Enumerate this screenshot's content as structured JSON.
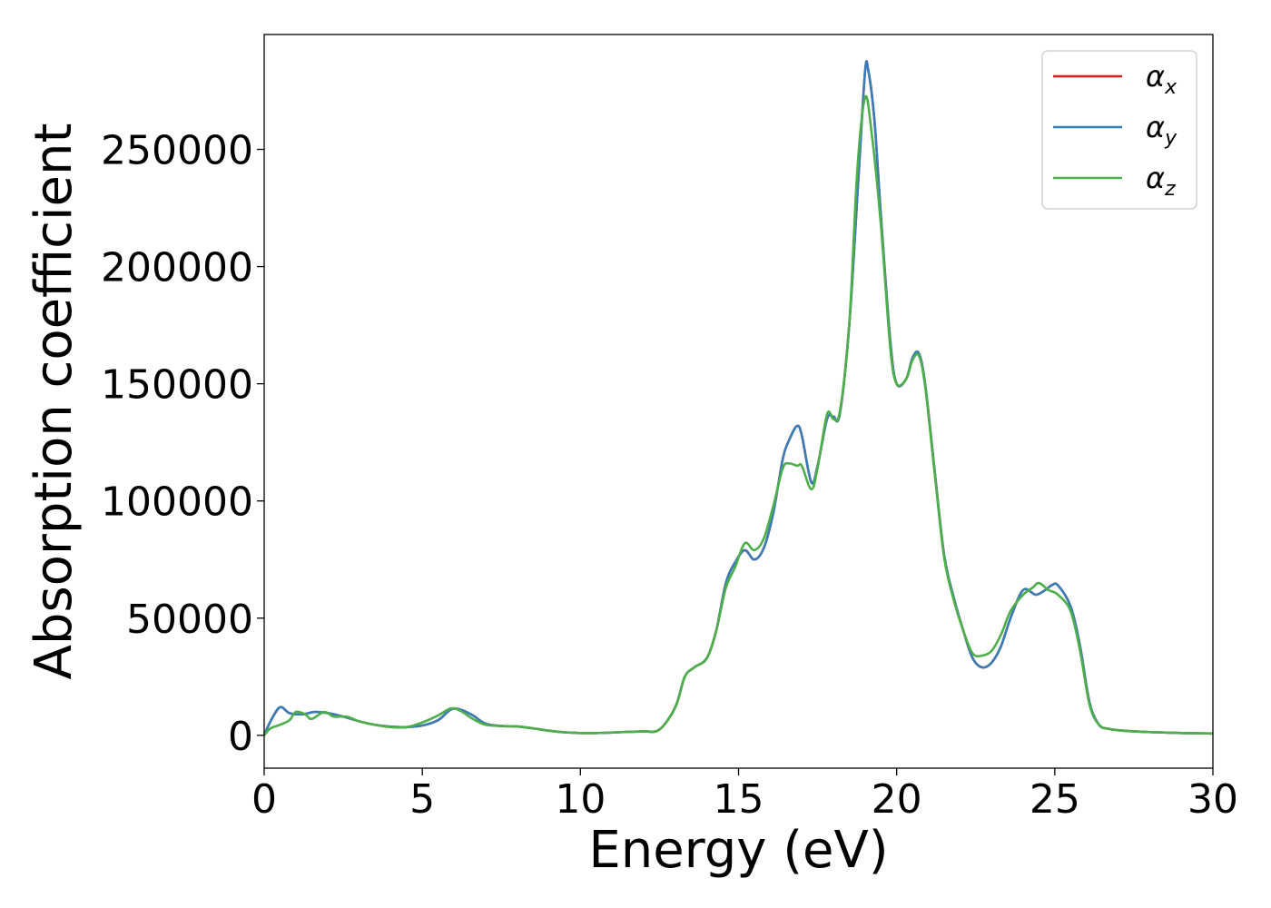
{
  "chart_data": {
    "type": "line",
    "title": "",
    "xlabel": "Energy (eV)",
    "ylabel": "Absorption coefficient",
    "xlim": [
      0,
      30
    ],
    "ylim": [
      -14000,
      299000
    ],
    "xticks": [
      0,
      5,
      10,
      15,
      20,
      25,
      30
    ],
    "yticks": [
      0,
      50000,
      100000,
      150000,
      200000,
      250000
    ],
    "grid": false,
    "legend_position": "top-right",
    "series": [
      {
        "name": "α_x",
        "base": "α",
        "sub": "x",
        "color": "#e41a1c",
        "x": [
          0,
          0.2,
          0.5,
          0.8,
          1.2,
          1.6,
          2.0,
          2.5,
          3.0,
          3.5,
          4.0,
          4.5,
          5.0,
          5.5,
          5.9,
          6.2,
          6.6,
          7.0,
          7.5,
          8.0,
          8.5,
          9.0,
          9.5,
          10.0,
          10.5,
          11.0,
          11.5,
          12.0,
          12.5,
          13.0,
          13.3,
          13.6,
          14.0,
          14.3,
          14.6,
          14.9,
          15.2,
          15.5,
          15.8,
          16.1,
          16.4,
          16.6,
          16.85,
          17.0,
          17.3,
          17.5,
          17.8,
          18.0,
          18.2,
          18.5,
          18.8,
          19.0,
          19.1,
          19.3,
          19.5,
          19.8,
          20.0,
          20.3,
          20.5,
          20.7,
          20.9,
          21.2,
          21.5,
          21.8,
          22.1,
          22.4,
          22.7,
          23.0,
          23.3,
          23.6,
          24.0,
          24.4,
          24.7,
          24.9,
          25.1,
          25.5,
          25.8,
          26.1,
          26.4,
          26.7,
          27.0,
          27.5,
          28.0,
          29.0,
          30.0
        ],
        "y": [
          0,
          6000,
          12000,
          9500,
          9000,
          10000,
          9500,
          8000,
          6000,
          4500,
          3700,
          3500,
          4200,
          6500,
          11000,
          11000,
          8500,
          5000,
          4000,
          3800,
          3000,
          2000,
          1300,
          1000,
          1000,
          1200,
          1500,
          1700,
          2500,
          12000,
          25000,
          29000,
          33000,
          45000,
          65000,
          74000,
          79000,
          75000,
          80000,
          95000,
          118000,
          126000,
          132000,
          128000,
          108000,
          115000,
          135000,
          136000,
          137000,
          175000,
          240000,
          283000,
          284000,
          262000,
          222000,
          168000,
          150000,
          152000,
          161000,
          163000,
          150000,
          113000,
          77000,
          59000,
          45000,
          33000,
          29000,
          31000,
          38000,
          50000,
          62000,
          60000,
          62000,
          64000,
          64000,
          55000,
          38000,
          14000,
          4500,
          2800,
          2200,
          1700,
          1400,
          1000,
          800
        ]
      },
      {
        "name": "α_y",
        "base": "α",
        "sub": "y",
        "color": "#377eb8",
        "x": [
          0,
          0.2,
          0.5,
          0.8,
          1.2,
          1.6,
          2.0,
          2.5,
          3.0,
          3.5,
          4.0,
          4.5,
          5.0,
          5.5,
          5.9,
          6.2,
          6.6,
          7.0,
          7.5,
          8.0,
          8.5,
          9.0,
          9.5,
          10.0,
          10.5,
          11.0,
          11.5,
          12.0,
          12.5,
          13.0,
          13.3,
          13.6,
          14.0,
          14.3,
          14.6,
          14.9,
          15.2,
          15.5,
          15.8,
          16.1,
          16.4,
          16.6,
          16.85,
          17.0,
          17.3,
          17.5,
          17.8,
          18.0,
          18.2,
          18.5,
          18.8,
          19.0,
          19.1,
          19.3,
          19.5,
          19.8,
          20.0,
          20.3,
          20.5,
          20.7,
          20.9,
          21.2,
          21.5,
          21.8,
          22.1,
          22.4,
          22.7,
          23.0,
          23.3,
          23.6,
          24.0,
          24.4,
          24.7,
          24.9,
          25.1,
          25.5,
          25.8,
          26.1,
          26.4,
          26.7,
          27.0,
          27.5,
          28.0,
          29.0,
          30.0
        ],
        "y": [
          0,
          6000,
          12000,
          9500,
          9000,
          10000,
          9500,
          8000,
          6000,
          4500,
          3700,
          3500,
          4200,
          6500,
          11000,
          11000,
          8500,
          5000,
          4000,
          3800,
          3000,
          2000,
          1300,
          1000,
          1000,
          1200,
          1500,
          1700,
          2500,
          12000,
          25000,
          29000,
          33000,
          45000,
          65000,
          74000,
          79000,
          75000,
          80000,
          95000,
          118000,
          126000,
          132000,
          128000,
          108000,
          115000,
          135000,
          136000,
          137000,
          175000,
          240000,
          283000,
          284000,
          262000,
          222000,
          168000,
          150000,
          152000,
          161000,
          163000,
          150000,
          113000,
          77000,
          59000,
          45000,
          33000,
          29000,
          31000,
          38000,
          50000,
          62000,
          60000,
          62000,
          64000,
          64000,
          55000,
          38000,
          14000,
          4500,
          2800,
          2200,
          1700,
          1400,
          1000,
          800
        ]
      },
      {
        "name": "α_z",
        "base": "α",
        "sub": "z",
        "color": "#4daf4a",
        "x": [
          0,
          0.2,
          0.5,
          0.8,
          1.0,
          1.3,
          1.5,
          1.9,
          2.2,
          2.6,
          3.0,
          3.5,
          4.0,
          4.5,
          5.0,
          5.5,
          5.9,
          6.2,
          6.6,
          7.0,
          7.5,
          8.0,
          8.5,
          9.0,
          9.5,
          10.0,
          10.5,
          11.0,
          11.5,
          12.0,
          12.5,
          13.0,
          13.3,
          13.6,
          14.0,
          14.3,
          14.6,
          14.9,
          15.2,
          15.5,
          15.8,
          16.1,
          16.4,
          16.6,
          16.85,
          17.0,
          17.3,
          17.5,
          17.8,
          18.0,
          18.2,
          18.5,
          18.75,
          19.0,
          19.2,
          19.5,
          19.8,
          20.0,
          20.3,
          20.5,
          20.7,
          20.9,
          21.2,
          21.5,
          21.8,
          22.1,
          22.4,
          22.7,
          23.0,
          23.3,
          23.6,
          24.0,
          24.3,
          24.5,
          24.8,
          25.1,
          25.5,
          25.8,
          26.1,
          26.4,
          26.7,
          27.0,
          27.5,
          28.0,
          29.0,
          30.0
        ],
        "y": [
          0,
          3000,
          4500,
          6500,
          10000,
          9000,
          7000,
          10000,
          8000,
          8000,
          6000,
          4500,
          3500,
          3500,
          5500,
          8500,
          11500,
          10500,
          7000,
          4500,
          4000,
          3800,
          3000,
          2000,
          1300,
          1000,
          1000,
          1200,
          1500,
          1700,
          2500,
          12000,
          25000,
          29000,
          33000,
          45000,
          63000,
          72000,
          82000,
          79000,
          84000,
          98000,
          114000,
          116000,
          115000,
          115000,
          105000,
          114000,
          137000,
          135000,
          138000,
          175000,
          240000,
          272000,
          258000,
          218000,
          165000,
          150000,
          152000,
          160000,
          162000,
          149000,
          112000,
          76000,
          58000,
          45000,
          35000,
          34000,
          36000,
          43000,
          53000,
          60000,
          63000,
          65000,
          62000,
          60000,
          53000,
          36000,
          13000,
          4500,
          2800,
          2200,
          1700,
          1400,
          1000,
          800
        ]
      }
    ]
  }
}
